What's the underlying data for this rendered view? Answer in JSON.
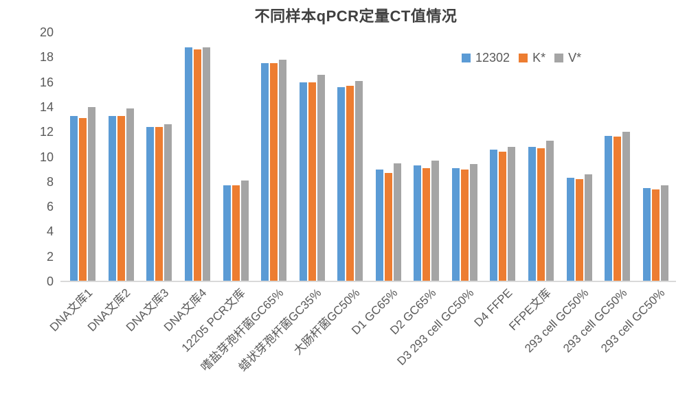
{
  "title": "不同样本qPCR定量CT值情况",
  "colors": {
    "series_blue": "#5B9BD5",
    "series_orange": "#ED7D31",
    "series_gray": "#A5A5A5",
    "title_text": "#404040",
    "axis_text": "#595959",
    "axis_line": "#D9D9D9",
    "background": "#FFFFFF"
  },
  "chart_data": {
    "type": "bar",
    "title": "不同样本qPCR定量CT值情况",
    "xlabel": "",
    "ylabel": "",
    "ylim": [
      0,
      20
    ],
    "ytick_step": 2,
    "yticks": [
      0,
      2,
      4,
      6,
      8,
      10,
      12,
      14,
      16,
      18,
      20
    ],
    "grid": false,
    "legend_position": "top-right",
    "x_label_rotation_deg": 45,
    "categories": [
      "DNA文库1",
      "DNA文库2",
      "DNA文库3",
      "DNA文库4",
      "12205 PCR文库",
      "嗜盐芽孢杆菌GC65%",
      "蜡状芽孢杆菌GC35%",
      "大肠杆菌GC50%",
      "D1 GC65%",
      "D2 GC65%",
      "D3 293 cell GC50%",
      "D4 FFPE",
      "FFPE文库",
      "293 cell GC50%",
      "293 cell GC50%",
      "293 cell GC50%"
    ],
    "series": [
      {
        "name": "12302",
        "color": "#5B9BD5",
        "values": [
          13.3,
          13.3,
          12.4,
          18.8,
          7.7,
          17.5,
          16.0,
          15.6,
          9.0,
          9.3,
          9.1,
          10.6,
          10.8,
          8.3,
          11.7,
          7.5
        ]
      },
      {
        "name": "K*",
        "color": "#ED7D31",
        "values": [
          13.1,
          13.3,
          12.4,
          18.6,
          7.7,
          17.5,
          16.0,
          15.7,
          8.7,
          9.1,
          9.0,
          10.4,
          10.7,
          8.2,
          11.6,
          7.4
        ]
      },
      {
        "name": "V*",
        "color": "#A5A5A5",
        "values": [
          14.0,
          13.9,
          12.6,
          18.8,
          8.1,
          17.8,
          16.6,
          16.1,
          9.5,
          9.7,
          9.4,
          10.8,
          11.3,
          8.6,
          12.0,
          7.7
        ]
      }
    ]
  }
}
